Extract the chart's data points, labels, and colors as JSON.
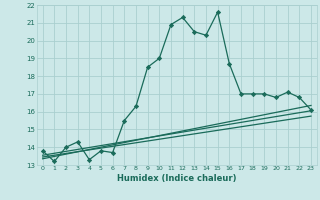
{
  "xlabel": "Humidex (Indice chaleur)",
  "bg_color": "#cce8e8",
  "grid_color": "#aacfcf",
  "line_color": "#1a6b5a",
  "xlim": [
    -0.5,
    23.5
  ],
  "ylim": [
    13,
    22
  ],
  "yticks": [
    13,
    14,
    15,
    16,
    17,
    18,
    19,
    20,
    21,
    22
  ],
  "xticks": [
    0,
    1,
    2,
    3,
    4,
    5,
    6,
    7,
    8,
    9,
    10,
    11,
    12,
    13,
    14,
    15,
    16,
    17,
    18,
    19,
    20,
    21,
    22,
    23
  ],
  "main_line_x": [
    0,
    1,
    2,
    3,
    4,
    5,
    6,
    7,
    8,
    9,
    10,
    11,
    12,
    13,
    14,
    15,
    16,
    17,
    18,
    19,
    20,
    21,
    22,
    23
  ],
  "main_line_y": [
    13.8,
    13.2,
    14.0,
    14.3,
    13.3,
    13.8,
    13.7,
    15.5,
    16.3,
    18.5,
    19.0,
    20.9,
    21.3,
    20.5,
    20.3,
    21.6,
    18.7,
    17.0,
    17.0,
    17.0,
    16.8,
    17.1,
    16.8,
    16.1
  ],
  "reg_lines": [
    {
      "x": [
        0,
        23
      ],
      "y": [
        13.55,
        16.05
      ]
    },
    {
      "x": [
        0,
        23
      ],
      "y": [
        13.45,
        15.75
      ]
    },
    {
      "x": [
        0,
        23
      ],
      "y": [
        13.35,
        16.35
      ]
    }
  ]
}
